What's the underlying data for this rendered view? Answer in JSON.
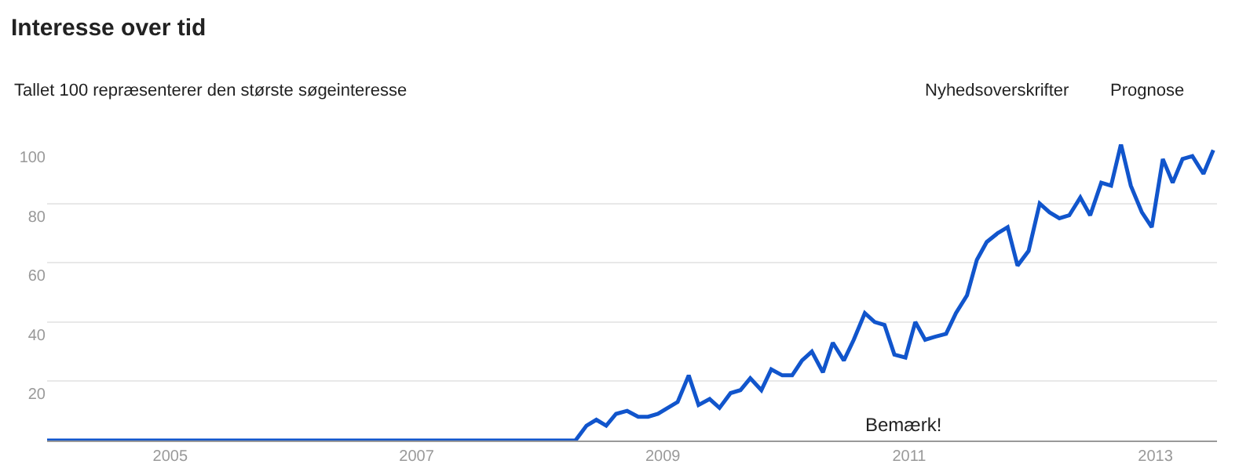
{
  "chart_data": {
    "type": "line",
    "title": "Interesse over tid",
    "subtitle": "Tallet 100 repræsenterer den største søgeinteresse",
    "annotations": [
      "Nyhedsoverskrifter",
      "Prognose",
      "Bemærk!"
    ],
    "x": [
      2004.0,
      2008.29,
      2008.38,
      2008.46,
      2008.54,
      2008.62,
      2008.71,
      2008.8,
      2008.88,
      2008.96,
      2009.04,
      2009.12,
      2009.21,
      2009.29,
      2009.38,
      2009.46,
      2009.55,
      2009.63,
      2009.71,
      2009.8,
      2009.88,
      2009.97,
      2010.05,
      2010.13,
      2010.21,
      2010.3,
      2010.38,
      2010.47,
      2010.55,
      2010.64,
      2010.72,
      2010.8,
      2010.88,
      2010.97,
      2011.05,
      2011.13,
      2011.21,
      2011.3,
      2011.38,
      2011.47,
      2011.55,
      2011.63,
      2011.72,
      2011.8,
      2011.88,
      2011.97,
      2012.06,
      2012.14,
      2012.22,
      2012.3,
      2012.39,
      2012.47,
      2012.56,
      2012.64,
      2012.72,
      2012.8,
      2012.89,
      2012.97,
      2013.06,
      2013.14,
      2013.22,
      2013.3,
      2013.39,
      2013.47
    ],
    "series": [
      {
        "color": "#1155cc",
        "values": [
          0,
          0,
          5,
          7,
          5,
          9,
          10,
          8,
          8,
          9,
          11,
          13,
          22,
          12,
          14,
          11,
          16,
          17,
          21,
          17,
          24,
          22,
          22,
          27,
          30,
          23,
          33,
          27,
          34,
          43,
          40,
          39,
          29,
          28,
          40,
          34,
          35,
          36,
          43,
          49,
          61,
          67,
          70,
          72,
          59,
          64,
          80,
          77,
          75,
          76,
          82,
          76,
          87,
          86,
          100,
          86,
          77,
          72,
          95,
          87,
          95,
          96,
          90,
          98
        ]
      }
    ],
    "xlim": [
      2004.0,
      2013.5
    ],
    "xticks": [
      2005,
      2007,
      2009,
      2011,
      2013
    ],
    "ylim": [
      0,
      100
    ],
    "yticks": [
      {
        "value": 0,
        "label": null
      },
      20,
      40,
      60,
      80,
      100
    ],
    "grid": "y",
    "marker": "none",
    "line_style": "solid"
  }
}
